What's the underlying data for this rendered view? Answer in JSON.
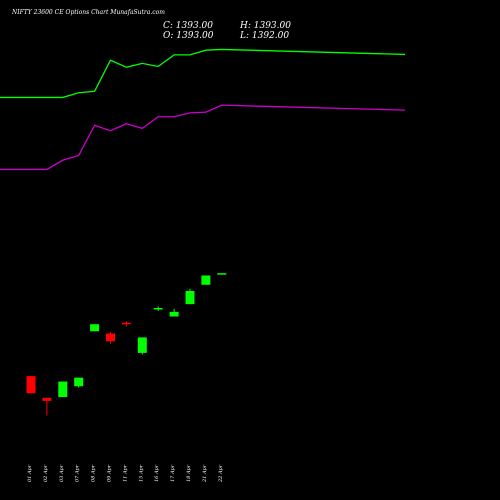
{
  "header": {
    "title": "NIFTY 23600  CE Options  Chart MunafaSutra.com",
    "close": "C: 1393.00",
    "high": "H: 1393.00",
    "open": "O: 1393.00",
    "low": "L: 1392.00"
  },
  "colors": {
    "background": "#000000",
    "up": "#00ff00",
    "down": "#ff0000",
    "upper_line": "#00ff00",
    "lower_line": "#cc00cc",
    "text": "#ffffff"
  },
  "chart_data": {
    "type": "candlestick",
    "categories": [
      "01 Apr",
      "02 Apr",
      "03 Apr",
      "07 Apr",
      "08 Apr",
      "09 Apr",
      "11 Apr",
      "15 Apr",
      "16 Apr",
      "17 Apr",
      "18 Apr",
      "21 Apr",
      "22 Apr"
    ],
    "candles": [
      {
        "open": 1260,
        "high": 1260,
        "low": 1238,
        "close": 1238
      },
      {
        "open": 1232,
        "high": 1232,
        "low": 1209,
        "close": 1228
      },
      {
        "open": 1233,
        "high": 1253,
        "low": 1233,
        "close": 1253
      },
      {
        "open": 1247,
        "high": 1258,
        "low": 1245,
        "close": 1258
      },
      {
        "open": 1318,
        "high": 1327,
        "low": 1318,
        "close": 1327
      },
      {
        "open": 1315,
        "high": 1317,
        "low": 1302,
        "close": 1305
      },
      {
        "open": 1329,
        "high": 1331,
        "low": 1324,
        "close": 1327
      },
      {
        "open": 1290,
        "high": 1310,
        "low": 1288,
        "close": 1310
      },
      {
        "open": 1348,
        "high": 1350,
        "low": 1344,
        "close": 1348
      },
      {
        "open": 1337,
        "high": 1347,
        "low": 1337,
        "close": 1343
      },
      {
        "open": 1353,
        "high": 1373,
        "low": 1353,
        "close": 1370
      },
      {
        "open": 1378,
        "high": 1385,
        "low": 1378,
        "close": 1390
      },
      {
        "open": 1393,
        "high": 1393,
        "low": 1392,
        "close": 1393
      }
    ],
    "upper_line": [
      1620,
      1620,
      1620,
      1626,
      1628,
      1668,
      1659,
      1664,
      1660,
      1675,
      1675,
      1681,
      1682
    ],
    "lower_line": [
      1527,
      1527,
      1539,
      1545,
      1584,
      1577,
      1586,
      1580,
      1595,
      1595,
      1600,
      1601,
      1610
    ],
    "ylim": [
      1100,
      1720
    ]
  }
}
